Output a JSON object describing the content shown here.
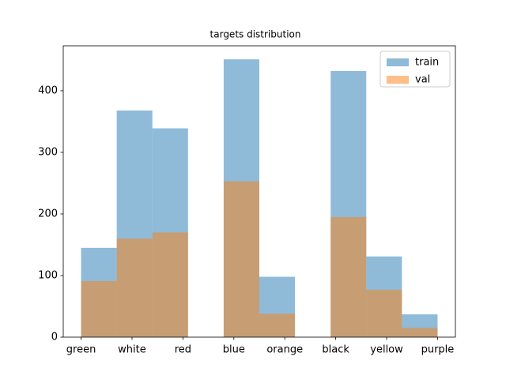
{
  "chart_data": {
    "type": "histogram",
    "title": "targets distribution",
    "bins": [
      0,
      0.7,
      1.4,
      2.1,
      2.8,
      3.5,
      4.2,
      4.9,
      5.6,
      6.3,
      7
    ],
    "series": [
      {
        "name": "train",
        "color": "#1f77b4",
        "values": [
          145,
          368,
          339,
          0,
          451,
          98,
          0,
          432,
          131,
          37
        ]
      },
      {
        "name": "val",
        "color": "#ff7f0e",
        "values": [
          91,
          160,
          170,
          0,
          253,
          38,
          0,
          195,
          77,
          15
        ]
      }
    ],
    "alpha": 0.5,
    "xlim": [
      -0.35,
      7.35
    ],
    "xticks": [
      {
        "value": 0,
        "label": "green"
      },
      {
        "value": 1,
        "label": "white"
      },
      {
        "value": 2,
        "label": "red"
      },
      {
        "value": 3,
        "label": "blue"
      },
      {
        "value": 4,
        "label": "orange"
      },
      {
        "value": 5,
        "label": "black"
      },
      {
        "value": 6,
        "label": "yellow"
      },
      {
        "value": 7,
        "label": "purple"
      }
    ],
    "ylim": [
      0,
      473
    ],
    "yticks": [
      0,
      100,
      200,
      300,
      400
    ],
    "legend": "upper right"
  }
}
